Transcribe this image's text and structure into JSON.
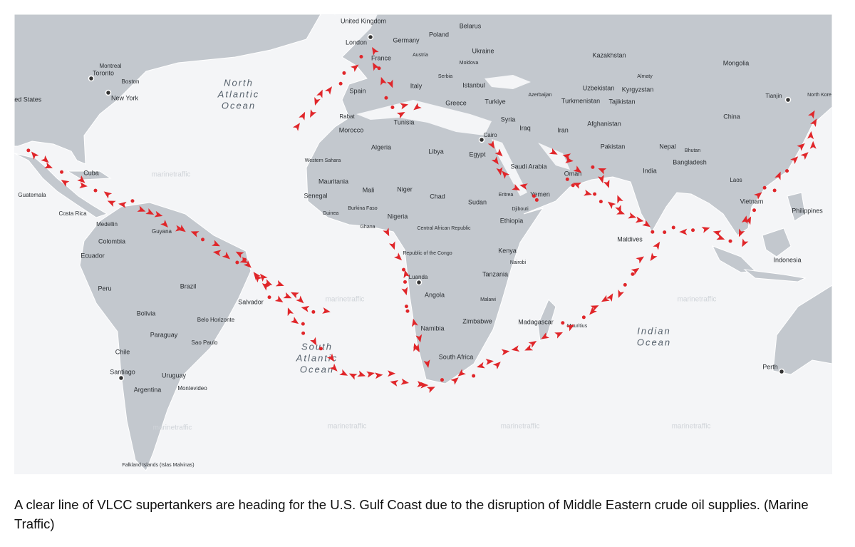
{
  "map": {
    "labels": [
      "United Kingdom",
      "London",
      "Germany",
      "Poland",
      "Belarus",
      "Ukraine",
      "Moldova",
      "France",
      "Austria",
      "Serbia",
      "Spain",
      "Italy",
      "Istanbul",
      "Greece",
      "Turkiye",
      "Azerbaijan",
      "Kazakhstan",
      "Mongolia",
      "Almaty",
      "Uzbekistan",
      "Kyrgyzstan",
      "Turkmenistan",
      "Tajikistan",
      "Tianjin",
      "North Kore",
      "China",
      "Syria",
      "Iraq",
      "Iran",
      "Afghanistan",
      "Tunisia",
      "Rabat",
      "Morocco",
      "Cairo",
      "Algeria",
      "Libya",
      "Egypt",
      "Pakistan",
      "Nepal",
      "Bhutan",
      "Bangladesh",
      "India",
      "Saudi Arabia",
      "Oman",
      "Western Sahara",
      "Mauritania",
      "Mali",
      "Niger",
      "Chad",
      "Sudan",
      "Eritrea",
      "Yemen",
      "Djibouti",
      "Ethiopia",
      "Senegal",
      "Guinea",
      "Burkina Faso",
      "Nigeria",
      "Ghana",
      "Central African Republic",
      "Republic of the Congo",
      "Kenya",
      "Nairobi",
      "Tanzania",
      "Luanda",
      "Angola",
      "Malawi",
      "Zimbabwe",
      "Madagascar",
      "Mauritius",
      "Namibia",
      "South Africa",
      "Maldives",
      "Laos",
      "Vietnam",
      "Philippines",
      "Indonesia",
      "Perth",
      "Montreal",
      "Toronto",
      "Boston",
      "New York",
      "ted States",
      "Cuba",
      "Guatemala",
      "Costa Rica",
      "Medellin",
      "Guyana",
      "Colombia",
      "Ecuador",
      "Peru",
      "Brazil",
      "Salvador",
      "Bolivia",
      "Belo Horizonte",
      "Paraguay",
      "Sao Paulo",
      "Chile",
      "Santiago",
      "Uruguay",
      "Argentina",
      "Montevideo",
      "Falkland Islands (Islas Malvinas)",
      "North",
      "Atlantic",
      "Ocean",
      "South",
      "Atlantic",
      "Ocean",
      "Indian",
      "Ocean",
      "marinetraffic",
      "marinetraffic",
      "marinetraffic",
      "marinetraffic",
      "marinetraffic",
      "marinetraffic",
      "marinetraffic"
    ]
  },
  "caption": "A clear line of VLCC supertankers are heading for the U.S. Gulf Coast due to the disruption of Middle Eastern crude oil supplies. (Marine Traffic)"
}
